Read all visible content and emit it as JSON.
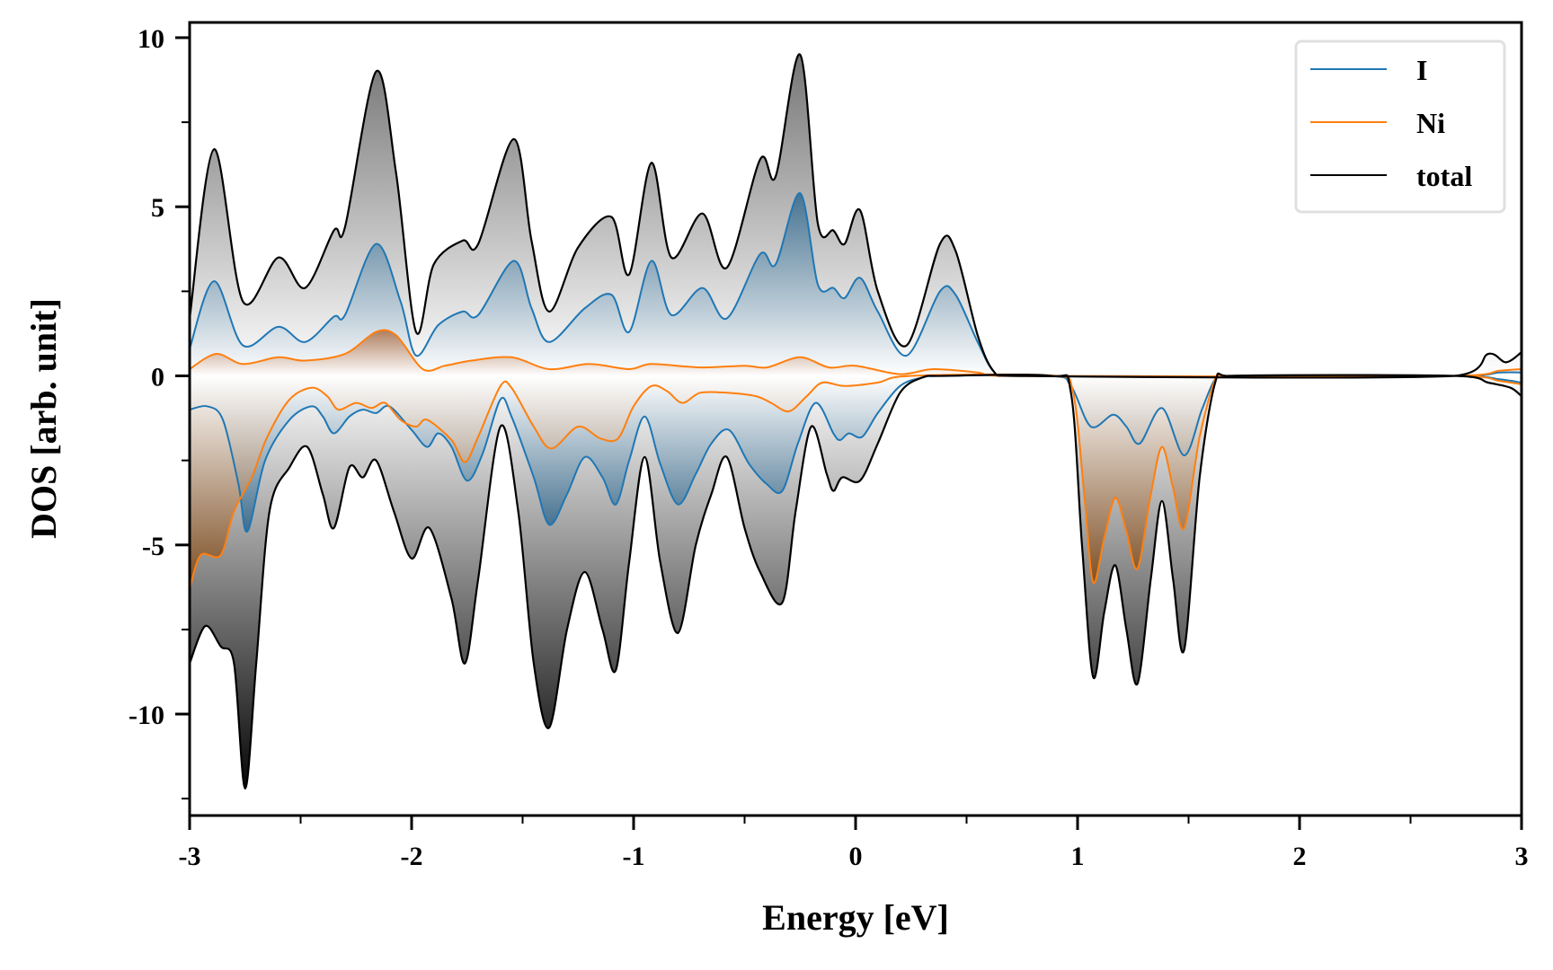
{
  "chart_data": {
    "type": "area",
    "title": "",
    "xlabel": "Energy [eV]",
    "ylabel": "DOS [arb. unit]",
    "xlim": [
      -3,
      3
    ],
    "ylim": [
      -13,
      10.45
    ],
    "xticks": [
      -3,
      -2,
      -1,
      0,
      1,
      2,
      3
    ],
    "xtick_labels": [
      "-3",
      "-2",
      "-1",
      "0",
      "1",
      "2",
      "3"
    ],
    "yticks": [
      10,
      5,
      0,
      -5,
      -10
    ],
    "ytick_labels": [
      "10",
      "5",
      "0",
      "-5",
      "-10"
    ],
    "grid": false,
    "legend_position": "top-right",
    "legend": [
      "I",
      "Ni",
      "total"
    ],
    "colors": {
      "I": "#1f77b4",
      "Ni": "#ff7f0e",
      "total": "#000000"
    },
    "series": [
      {
        "name": "I",
        "up": [
          [
            -3,
            0.8
          ],
          [
            -2.89,
            2.8
          ],
          [
            -2.76,
            0.9
          ],
          [
            -2.6,
            1.45
          ],
          [
            -2.48,
            1.0
          ],
          [
            -2.35,
            1.75
          ],
          [
            -2.3,
            1.8
          ],
          [
            -2.16,
            3.9
          ],
          [
            -2.05,
            2.2
          ],
          [
            -1.98,
            0.6
          ],
          [
            -1.88,
            1.5
          ],
          [
            -1.77,
            1.9
          ],
          [
            -1.7,
            1.8
          ],
          [
            -1.54,
            3.4
          ],
          [
            -1.46,
            2.0
          ],
          [
            -1.38,
            1.0
          ],
          [
            -1.22,
            2.0
          ],
          [
            -1.1,
            2.4
          ],
          [
            -1.02,
            1.3
          ],
          [
            -0.92,
            3.4
          ],
          [
            -0.83,
            1.8
          ],
          [
            -0.69,
            2.6
          ],
          [
            -0.58,
            1.7
          ],
          [
            -0.43,
            3.6
          ],
          [
            -0.36,
            3.3
          ],
          [
            -0.25,
            5.4
          ],
          [
            -0.17,
            2.7
          ],
          [
            -0.1,
            2.6
          ],
          [
            -0.05,
            2.3
          ],
          [
            0.02,
            2.9
          ],
          [
            0.1,
            1.9
          ],
          [
            0.23,
            0.6
          ],
          [
            0.38,
            2.5
          ],
          [
            0.45,
            2.4
          ],
          [
            0.55,
            1.0
          ],
          [
            0.62,
            0.15
          ],
          [
            0.7,
            0
          ],
          [
            2.7,
            0
          ],
          [
            2.9,
            0.1
          ],
          [
            3,
            0.1
          ]
        ],
        "down": [
          [
            -3,
            -1.0
          ],
          [
            -2.92,
            -0.9
          ],
          [
            -2.85,
            -1.3
          ],
          [
            -2.78,
            -3.2
          ],
          [
            -2.74,
            -4.6
          ],
          [
            -2.66,
            -2.5
          ],
          [
            -2.55,
            -1.3
          ],
          [
            -2.45,
            -0.9
          ],
          [
            -2.4,
            -1.2
          ],
          [
            -2.35,
            -1.7
          ],
          [
            -2.28,
            -1.2
          ],
          [
            -2.22,
            -1.0
          ],
          [
            -2.16,
            -1.1
          ],
          [
            -2.1,
            -0.9
          ],
          [
            -2.0,
            -1.6
          ],
          [
            -1.93,
            -2.1
          ],
          [
            -1.88,
            -1.7
          ],
          [
            -1.82,
            -2.1
          ],
          [
            -1.75,
            -3.1
          ],
          [
            -1.68,
            -2.3
          ],
          [
            -1.6,
            -0.7
          ],
          [
            -1.55,
            -1.2
          ],
          [
            -1.45,
            -3.0
          ],
          [
            -1.38,
            -4.4
          ],
          [
            -1.3,
            -3.5
          ],
          [
            -1.22,
            -2.4
          ],
          [
            -1.14,
            -3.0
          ],
          [
            -1.08,
            -3.8
          ],
          [
            -1.02,
            -2.5
          ],
          [
            -0.95,
            -1.2
          ],
          [
            -0.88,
            -2.6
          ],
          [
            -0.8,
            -3.8
          ],
          [
            -0.72,
            -2.9
          ],
          [
            -0.65,
            -2.0
          ],
          [
            -0.57,
            -1.6
          ],
          [
            -0.48,
            -2.6
          ],
          [
            -0.4,
            -3.2
          ],
          [
            -0.33,
            -3.4
          ],
          [
            -0.26,
            -2.0
          ],
          [
            -0.18,
            -0.8
          ],
          [
            -0.1,
            -1.7
          ],
          [
            -0.07,
            -1.9
          ],
          [
            -0.03,
            -1.7
          ],
          [
            0.03,
            -1.8
          ],
          [
            0.1,
            -1.1
          ],
          [
            0.2,
            -0.3
          ],
          [
            0.3,
            -0.05
          ],
          [
            0.4,
            0
          ],
          [
            0.88,
            0
          ],
          [
            0.97,
            -0.3
          ],
          [
            1.06,
            -1.5
          ],
          [
            1.16,
            -1.15
          ],
          [
            1.22,
            -1.5
          ],
          [
            1.28,
            -2.0
          ],
          [
            1.38,
            -0.95
          ],
          [
            1.48,
            -2.35
          ],
          [
            1.56,
            -1.0
          ],
          [
            1.62,
            -0.1
          ],
          [
            1.68,
            0
          ],
          [
            2.7,
            0
          ],
          [
            2.9,
            -0.1
          ],
          [
            3,
            -0.2
          ]
        ]
      },
      {
        "name": "Ni",
        "up": [
          [
            -3,
            0.2
          ],
          [
            -2.88,
            0.65
          ],
          [
            -2.76,
            0.35
          ],
          [
            -2.6,
            0.55
          ],
          [
            -2.48,
            0.45
          ],
          [
            -2.3,
            0.65
          ],
          [
            -2.16,
            1.3
          ],
          [
            -2.07,
            1.2
          ],
          [
            -1.95,
            0.2
          ],
          [
            -1.85,
            0.3
          ],
          [
            -1.73,
            0.45
          ],
          [
            -1.55,
            0.55
          ],
          [
            -1.38,
            0.2
          ],
          [
            -1.2,
            0.35
          ],
          [
            -1.02,
            0.2
          ],
          [
            -0.92,
            0.35
          ],
          [
            -0.7,
            0.25
          ],
          [
            -0.5,
            0.3
          ],
          [
            -0.4,
            0.25
          ],
          [
            -0.25,
            0.55
          ],
          [
            -0.12,
            0.25
          ],
          [
            0,
            0.3
          ],
          [
            0.2,
            0.05
          ],
          [
            0.35,
            0.2
          ],
          [
            0.55,
            0.1
          ],
          [
            0.65,
            0
          ],
          [
            2.7,
            0
          ],
          [
            2.9,
            0.15
          ],
          [
            3,
            0.2
          ]
        ],
        "down": [
          [
            -3,
            -6.3
          ],
          [
            -2.95,
            -5.3
          ],
          [
            -2.86,
            -5.3
          ],
          [
            -2.8,
            -4.0
          ],
          [
            -2.72,
            -3.0
          ],
          [
            -2.65,
            -1.8
          ],
          [
            -2.55,
            -0.7
          ],
          [
            -2.45,
            -0.35
          ],
          [
            -2.38,
            -0.6
          ],
          [
            -2.33,
            -1.0
          ],
          [
            -2.25,
            -0.8
          ],
          [
            -2.18,
            -0.95
          ],
          [
            -2.12,
            -0.8
          ],
          [
            -2.05,
            -1.3
          ],
          [
            -1.98,
            -1.5
          ],
          [
            -1.93,
            -1.3
          ],
          [
            -1.82,
            -1.9
          ],
          [
            -1.76,
            -2.55
          ],
          [
            -1.7,
            -1.8
          ],
          [
            -1.6,
            -0.3
          ],
          [
            -1.55,
            -0.35
          ],
          [
            -1.45,
            -1.5
          ],
          [
            -1.37,
            -2.15
          ],
          [
            -1.25,
            -1.5
          ],
          [
            -1.15,
            -1.85
          ],
          [
            -1.07,
            -1.85
          ],
          [
            -1.0,
            -0.9
          ],
          [
            -0.92,
            -0.3
          ],
          [
            -0.85,
            -0.45
          ],
          [
            -0.78,
            -0.8
          ],
          [
            -0.7,
            -0.5
          ],
          [
            -0.58,
            -0.5
          ],
          [
            -0.45,
            -0.6
          ],
          [
            -0.38,
            -0.8
          ],
          [
            -0.3,
            -1.05
          ],
          [
            -0.22,
            -0.6
          ],
          [
            -0.15,
            -0.2
          ],
          [
            -0.05,
            -0.3
          ],
          [
            0.1,
            -0.2
          ],
          [
            0.25,
            0
          ],
          [
            0.9,
            0
          ],
          [
            0.98,
            -0.5
          ],
          [
            1.03,
            -3.5
          ],
          [
            1.07,
            -6.1
          ],
          [
            1.12,
            -4.8
          ],
          [
            1.17,
            -3.6
          ],
          [
            1.22,
            -4.6
          ],
          [
            1.27,
            -5.7
          ],
          [
            1.33,
            -3.5
          ],
          [
            1.38,
            -2.1
          ],
          [
            1.43,
            -3.3
          ],
          [
            1.48,
            -4.5
          ],
          [
            1.55,
            -1.8
          ],
          [
            1.62,
            -0.1
          ],
          [
            1.66,
            0
          ],
          [
            2.7,
            0
          ],
          [
            2.9,
            -0.15
          ],
          [
            3,
            -0.25
          ]
        ]
      },
      {
        "name": "total",
        "up": [
          [
            -3,
            1.7
          ],
          [
            -2.89,
            6.7
          ],
          [
            -2.76,
            2.2
          ],
          [
            -2.6,
            3.5
          ],
          [
            -2.48,
            2.6
          ],
          [
            -2.35,
            4.3
          ],
          [
            -2.3,
            4.4
          ],
          [
            -2.16,
            9.0
          ],
          [
            -2.07,
            6.0
          ],
          [
            -1.98,
            1.3
          ],
          [
            -1.9,
            3.3
          ],
          [
            -1.77,
            4.0
          ],
          [
            -1.7,
            3.9
          ],
          [
            -1.54,
            7.0
          ],
          [
            -1.46,
            4.0
          ],
          [
            -1.38,
            1.9
          ],
          [
            -1.25,
            3.8
          ],
          [
            -1.1,
            4.7
          ],
          [
            -1.02,
            3.0
          ],
          [
            -0.92,
            6.3
          ],
          [
            -0.83,
            3.5
          ],
          [
            -0.69,
            4.8
          ],
          [
            -0.58,
            3.2
          ],
          [
            -0.43,
            6.4
          ],
          [
            -0.36,
            5.9
          ],
          [
            -0.25,
            9.5
          ],
          [
            -0.17,
            4.5
          ],
          [
            -0.1,
            4.3
          ],
          [
            -0.05,
            3.9
          ],
          [
            0.02,
            4.9
          ],
          [
            0.1,
            2.5
          ],
          [
            0.23,
            0.9
          ],
          [
            0.38,
            3.9
          ],
          [
            0.45,
            3.7
          ],
          [
            0.55,
            1.2
          ],
          [
            0.62,
            0.15
          ],
          [
            0.7,
            0
          ],
          [
            2.7,
            0
          ],
          [
            2.85,
            0.65
          ],
          [
            2.93,
            0.4
          ],
          [
            3,
            0.7
          ]
        ],
        "down": [
          [
            -3,
            -8.5
          ],
          [
            -2.93,
            -7.4
          ],
          [
            -2.86,
            -8.0
          ],
          [
            -2.8,
            -8.5
          ],
          [
            -2.75,
            -12.2
          ],
          [
            -2.7,
            -8.5
          ],
          [
            -2.64,
            -4.0
          ],
          [
            -2.55,
            -2.7
          ],
          [
            -2.47,
            -2.1
          ],
          [
            -2.4,
            -3.5
          ],
          [
            -2.35,
            -4.5
          ],
          [
            -2.28,
            -2.7
          ],
          [
            -2.22,
            -3.0
          ],
          [
            -2.16,
            -2.5
          ],
          [
            -2.08,
            -4.0
          ],
          [
            -2.0,
            -5.4
          ],
          [
            -1.92,
            -4.5
          ],
          [
            -1.82,
            -6.6
          ],
          [
            -1.76,
            -8.5
          ],
          [
            -1.7,
            -6.0
          ],
          [
            -1.6,
            -1.5
          ],
          [
            -1.52,
            -4.0
          ],
          [
            -1.45,
            -8.5
          ],
          [
            -1.38,
            -10.4
          ],
          [
            -1.3,
            -7.5
          ],
          [
            -1.22,
            -5.8
          ],
          [
            -1.14,
            -7.5
          ],
          [
            -1.08,
            -8.7
          ],
          [
            -1.02,
            -5.5
          ],
          [
            -0.95,
            -2.4
          ],
          [
            -0.88,
            -5.5
          ],
          [
            -0.8,
            -7.6
          ],
          [
            -0.72,
            -5.0
          ],
          [
            -0.65,
            -3.5
          ],
          [
            -0.58,
            -2.4
          ],
          [
            -0.5,
            -4.5
          ],
          [
            -0.43,
            -5.8
          ],
          [
            -0.33,
            -6.7
          ],
          [
            -0.27,
            -4.0
          ],
          [
            -0.2,
            -1.5
          ],
          [
            -0.13,
            -2.9
          ],
          [
            -0.1,
            -3.4
          ],
          [
            -0.06,
            -3.0
          ],
          [
            0.02,
            -3.1
          ],
          [
            0.1,
            -2.0
          ],
          [
            0.2,
            -0.5
          ],
          [
            0.3,
            -0.05
          ],
          [
            0.4,
            0
          ],
          [
            0.88,
            0
          ],
          [
            0.97,
            -0.5
          ],
          [
            1.02,
            -5.0
          ],
          [
            1.07,
            -8.9
          ],
          [
            1.12,
            -7.0
          ],
          [
            1.17,
            -5.6
          ],
          [
            1.22,
            -7.5
          ],
          [
            1.27,
            -9.1
          ],
          [
            1.33,
            -6.0
          ],
          [
            1.38,
            -3.7
          ],
          [
            1.43,
            -6.0
          ],
          [
            1.48,
            -8.1
          ],
          [
            1.55,
            -3.0
          ],
          [
            1.62,
            -0.2
          ],
          [
            1.68,
            0
          ],
          [
            2.7,
            0
          ],
          [
            2.85,
            -0.2
          ],
          [
            2.95,
            -0.35
          ],
          [
            3,
            -0.6
          ]
        ]
      }
    ]
  }
}
